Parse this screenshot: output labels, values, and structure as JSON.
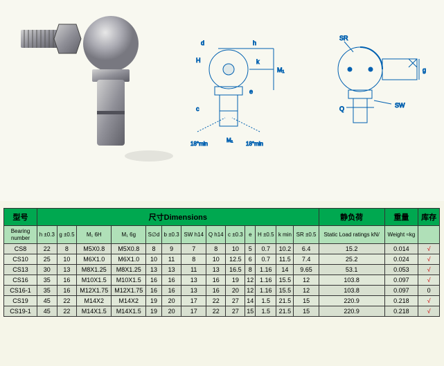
{
  "headers1": {
    "model": "型号",
    "dimensions": "尺寸Dimensions",
    "static_load": "静负荷",
    "weight": "重量",
    "stock": "库存"
  },
  "headers2": {
    "bearing": "Bearing number",
    "h": "h ±0.3",
    "g": "g ±0.5",
    "m1_6h": "M₁ 6H",
    "m1_6g": "M₁ 6g",
    "sd": "S∅d",
    "b": "b ±0.3",
    "sw": "SW h14",
    "q": "Q h14",
    "c": "c ±0.3",
    "e": "e",
    "h_cap": "H ±0.5",
    "k": "k min",
    "sr": "SR ±0.5",
    "static": "Static Load ratings kN/",
    "weight": "Weight ≈kg"
  },
  "rows": [
    {
      "bearing": "CS8",
      "h": "22",
      "g": "8",
      "m1h": "M5X0.8",
      "m1g": "M5X0.8",
      "sd": "8",
      "b": "9",
      "sw": "7",
      "q": "8",
      "c": "10",
      "e": "5",
      "hc": "0.7",
      "k": "10.2",
      "sr": "6.4",
      "load": "15.2",
      "wt": "0.014",
      "ck": "√"
    },
    {
      "bearing": "CS10",
      "h": "25",
      "g": "10",
      "m1h": "M6X1.0",
      "m1g": "M6X1.0",
      "sd": "10",
      "b": "11",
      "sw": "8",
      "q": "10",
      "c": "12.5",
      "e": "6",
      "hc": "0.7",
      "k": "11.5",
      "sr": "7.4",
      "load": "25.2",
      "wt": "0.024",
      "ck": "√"
    },
    {
      "bearing": "CS13",
      "h": "30",
      "g": "13",
      "m1h": "M8X1.25",
      "m1g": "M8X1.25",
      "sd": "13",
      "b": "13",
      "sw": "11",
      "q": "13",
      "c": "16.5",
      "e": "8",
      "hc": "1.16",
      "k": "14",
      "sr": "9.65",
      "load": "53.1",
      "wt": "0.053",
      "ck": "√"
    },
    {
      "bearing": "CS16",
      "h": "35",
      "g": "16",
      "m1h": "M10X1.5",
      "m1g": "M10X1.5",
      "sd": "16",
      "b": "16",
      "sw": "13",
      "q": "16",
      "c": "19",
      "e": "12",
      "hc": "1.16",
      "k": "15.5",
      "sr": "12",
      "load": "103.8",
      "wt": "0.097",
      "ck": "√"
    },
    {
      "bearing": "CS16-1",
      "h": "35",
      "g": "16",
      "m1h": "M12X1.75",
      "m1g": "M12X1.75",
      "sd": "16",
      "b": "16",
      "sw": "13",
      "q": "16",
      "c": "20",
      "e": "12",
      "hc": "1.16",
      "k": "15.5",
      "sr": "12",
      "load": "103.8",
      "wt": "0.097",
      "ck": "0"
    },
    {
      "bearing": "CS19",
      "h": "45",
      "g": "22",
      "m1h": "M14X2",
      "m1g": "M14X2",
      "sd": "19",
      "b": "20",
      "sw": "17",
      "q": "22",
      "c": "27",
      "e": "14",
      "hc": "1.5",
      "k": "21.5",
      "sr": "15",
      "load": "220.9",
      "wt": "0.218",
      "ck": "√"
    },
    {
      "bearing": "CS19-1",
      "h": "45",
      "g": "22",
      "m1h": "M14X1.5",
      "m1g": "M14X1.5",
      "sd": "19",
      "b": "20",
      "sw": "17",
      "q": "22",
      "c": "27",
      "e": "15",
      "hc": "1.5",
      "k": "21.5",
      "sr": "15",
      "load": "220.9",
      "wt": "0.218",
      "ck": "√"
    }
  ],
  "diagram_labels": [
    "d",
    "h",
    "SR",
    "H",
    "M₁",
    "g",
    "k",
    "e",
    "SW",
    "Q",
    "c",
    "M₁",
    "18°min",
    "18°min"
  ],
  "colors": {
    "header_bg": "#00a850",
    "subheader_bg": "#b0e0b8",
    "row_bg": "#e0e8d8",
    "row_alt_bg": "#d8e0d0",
    "page_bg": "#f5f5e8",
    "diagram_line": "#0060b0"
  }
}
